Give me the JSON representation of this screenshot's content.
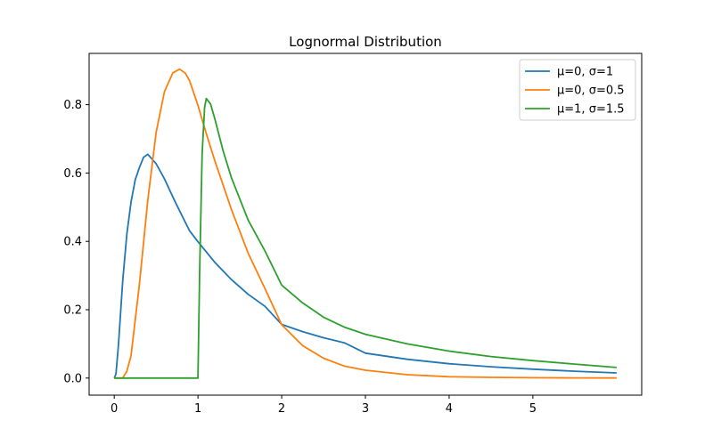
{
  "chart_data": {
    "type": "line",
    "title": "Lognormal Distribution",
    "xlabel": "",
    "ylabel": "",
    "xlim": [
      -0.3,
      6.3
    ],
    "ylim": [
      -0.05,
      0.95
    ],
    "x_ticks": [
      0,
      1,
      2,
      3,
      4,
      5
    ],
    "y_ticks": [
      0.0,
      0.2,
      0.4,
      0.6,
      0.8
    ],
    "y_tick_labels": [
      "0.0",
      "0.2",
      "0.4",
      "0.6",
      "0.8"
    ],
    "grid": false,
    "legend_position": "top-right",
    "series": [
      {
        "name": "μ=0, σ=1",
        "color": "#1f77b4",
        "x": [
          0,
          0.02,
          0.05,
          0.1,
          0.15,
          0.2,
          0.25,
          0.3,
          0.35,
          0.4,
          0.5,
          0.6,
          0.7,
          0.8,
          0.9,
          1.0,
          1.2,
          1.4,
          1.6,
          1.8,
          2.0,
          2.25,
          2.5,
          2.75,
          3.0,
          3.5,
          4.0,
          4.5,
          5.0,
          5.5,
          6.0
        ],
        "y": [
          0,
          0.0117,
          0.0967,
          0.2815,
          0.4207,
          0.5147,
          0.58,
          0.616,
          0.646,
          0.655,
          0.627,
          0.583,
          0.53,
          0.48,
          0.431,
          0.399,
          0.339,
          0.288,
          0.245,
          0.21,
          0.157,
          0.136,
          0.118,
          0.103,
          0.073,
          0.055,
          0.042,
          0.033,
          0.026,
          0.02,
          0.015
        ]
      },
      {
        "name": "μ=0, σ=0.5",
        "color": "#ff7f0e",
        "x": [
          0,
          0.1,
          0.15,
          0.2,
          0.3,
          0.4,
          0.5,
          0.6,
          0.7,
          0.78,
          0.85,
          0.9,
          1.0,
          1.1,
          1.2,
          1.4,
          1.6,
          1.8,
          2.0,
          2.25,
          2.5,
          2.75,
          3.0,
          3.5,
          4.0,
          4.5,
          5.0,
          5.5,
          6.0
        ],
        "y": [
          0,
          0,
          0.02,
          0.065,
          0.274,
          0.52,
          0.719,
          0.838,
          0.893,
          0.904,
          0.892,
          0.87,
          0.798,
          0.715,
          0.637,
          0.493,
          0.365,
          0.262,
          0.156,
          0.095,
          0.058,
          0.035,
          0.023,
          0.01,
          0.004,
          0.002,
          0.001,
          0.0005,
          0.0002
        ]
      },
      {
        "name": "μ=1, σ=1.5",
        "color": "#2ca02c",
        "x": [
          0,
          0.5,
          1.0,
          1.02,
          1.05,
          1.08,
          1.1,
          1.15,
          1.2,
          1.3,
          1.4,
          1.6,
          1.8,
          2.0,
          2.25,
          2.5,
          2.75,
          3.0,
          3.5,
          4.0,
          4.5,
          5.0,
          5.5,
          6.0
        ],
        "y": [
          0,
          0,
          0,
          0.31,
          0.656,
          0.793,
          0.818,
          0.802,
          0.76,
          0.665,
          0.586,
          0.462,
          0.372,
          0.272,
          0.22,
          0.178,
          0.149,
          0.128,
          0.1,
          0.079,
          0.063,
          0.051,
          0.041,
          0.031
        ]
      }
    ]
  }
}
